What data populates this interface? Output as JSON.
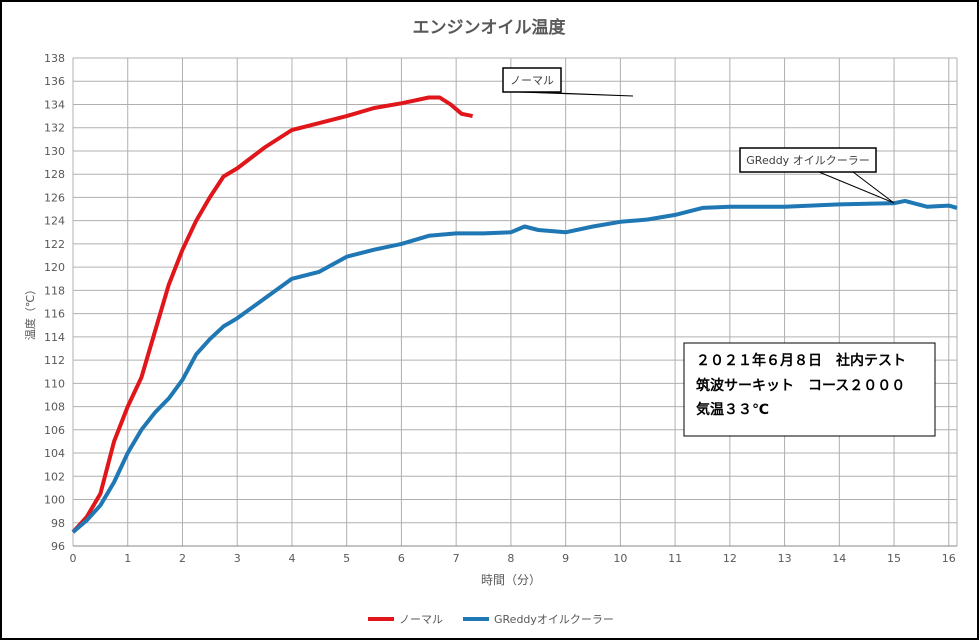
{
  "chart_data": {
    "type": "line",
    "title": "エンジンオイル温度",
    "xlabel": "時間（分）",
    "ylabel": "温度（℃）",
    "xlim": [
      0,
      16.15
    ],
    "ylim": [
      96,
      138
    ],
    "xticks": [
      0,
      1,
      2,
      3,
      4,
      5,
      6,
      7,
      8,
      9,
      10,
      11,
      12,
      13,
      14,
      15,
      16
    ],
    "yticks": [
      96,
      98,
      100,
      102,
      104,
      106,
      108,
      110,
      112,
      114,
      116,
      118,
      120,
      122,
      124,
      126,
      128,
      130,
      132,
      134,
      136,
      138
    ],
    "grid": true,
    "legend_position": "bottom",
    "series": [
      {
        "name": "ノーマル",
        "color": "#e0161b",
        "x": [
          0,
          0.25,
          0.5,
          0.75,
          1,
          1.25,
          1.5,
          1.75,
          2,
          2.25,
          2.5,
          2.75,
          3,
          3.5,
          4,
          4.5,
          5,
          5.5,
          6,
          6.5,
          6.7,
          6.9,
          7.1,
          7.3
        ],
        "y": [
          97.2,
          98.5,
          100.5,
          105,
          108,
          110.5,
          114.5,
          118.5,
          121.5,
          124,
          126,
          127.8,
          128.5,
          130.3,
          131.8,
          132.4,
          133,
          133.7,
          134.1,
          134.6,
          134.6,
          134,
          133.2,
          133
        ]
      },
      {
        "name": "GReddyオイルクーラー",
        "color": "#1f77b4",
        "x": [
          0,
          0.25,
          0.5,
          0.75,
          1,
          1.25,
          1.5,
          1.75,
          2,
          2.25,
          2.5,
          2.75,
          3,
          3.5,
          4,
          4.5,
          5,
          5.5,
          6,
          6.5,
          7,
          7.5,
          8,
          8.25,
          8.5,
          9,
          9.5,
          10,
          10.5,
          11,
          11.5,
          12,
          13,
          14,
          15,
          15.2,
          15.6,
          16,
          16.15
        ],
        "y": [
          97.2,
          98.2,
          99.5,
          101.5,
          104,
          106,
          107.5,
          108.7,
          110.3,
          112.5,
          113.8,
          114.9,
          115.6,
          117.3,
          119,
          119.6,
          120.9,
          121.5,
          122,
          122.7,
          122.9,
          122.9,
          123,
          123.5,
          123.2,
          123,
          123.5,
          123.9,
          124.1,
          124.5,
          125.1,
          125.2,
          125.2,
          125.4,
          125.5,
          125.7,
          125.2,
          125.3,
          125.1
        ]
      }
    ],
    "annotations": [
      {
        "text": "ノーマル",
        "points_to": [
          6.6,
          134.7
        ]
      },
      {
        "text": "GReddy オイルクーラー",
        "points_to": [
          15,
          125.6
        ]
      }
    ],
    "note_box": [
      "２０２１年６月８日　社内テスト",
      "筑波サーキット　コース２０００",
      "気温３３℃"
    ]
  }
}
